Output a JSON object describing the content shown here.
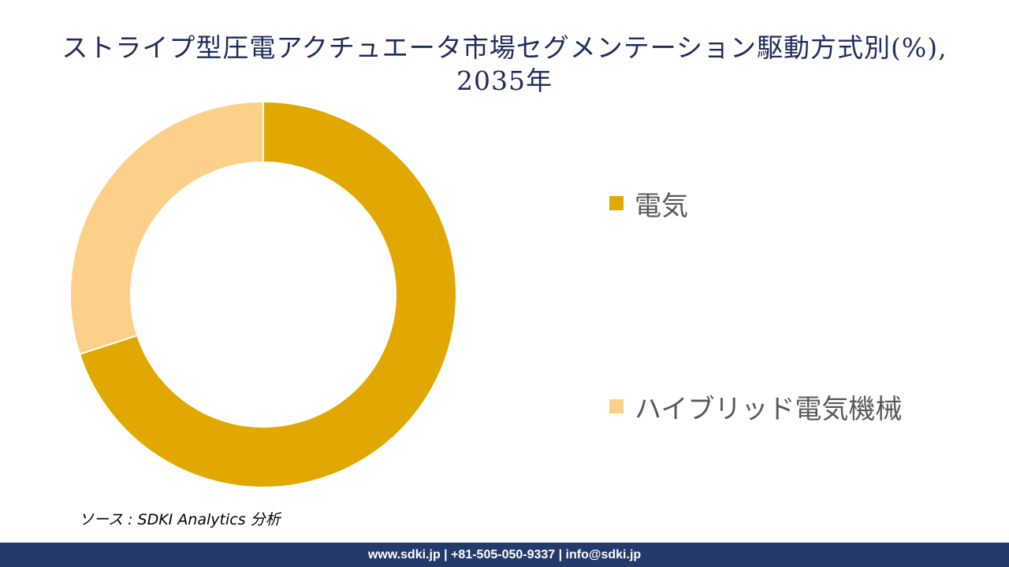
{
  "title_line1": "ストライプ型圧電アクチュエータ市場セグメンテーション駆動方式別(%),",
  "title_line2": "2035年",
  "chart_data": {
    "type": "donut",
    "title": "ストライプ型圧電アクチュエータ市場セグメンテーション駆動方式別(%), 2035年",
    "categories": [
      "電気",
      "ハイブリッド電気機械"
    ],
    "values": [
      70,
      30
    ],
    "colors": [
      "#e0a800",
      "#fcd088"
    ],
    "legend_position": "right",
    "start_angle_deg": 0,
    "direction": "clockwise"
  },
  "source_text": "ソース : SDKI Analytics  分析",
  "footer_text": "www.sdki.jp | +81-505-050-9337 | info@sdki.jp"
}
